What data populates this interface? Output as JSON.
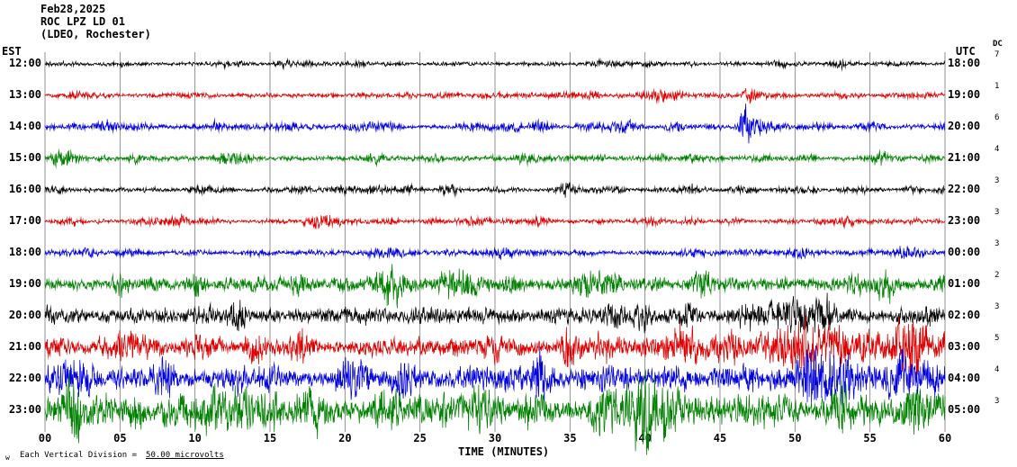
{
  "header": {
    "date": "Feb28,2025",
    "station_line": "ROC LPZ LD 01",
    "location_line": "(LDEO, Rochester)"
  },
  "axis_labels": {
    "left_tz": "EST",
    "right_tz": "UTC",
    "dc": "DC",
    "x_title": "TIME (MINUTES)"
  },
  "x_ticks": [
    "00",
    "05",
    "10",
    "15",
    "20",
    "25",
    "30",
    "35",
    "40",
    "45",
    "50",
    "55",
    "60"
  ],
  "footer": {
    "note": "Each Vertical Division =",
    "value": "50.00 microvolts",
    "corner_glyph": "w"
  },
  "chart_data": {
    "type": "line",
    "title": "ROC LPZ LD 01 (LDEO, Rochester) helicorder, Feb28,2025",
    "x_label": "TIME (MINUTES)",
    "x_range": [
      0,
      60
    ],
    "grid": {
      "x_interval_minutes": 5,
      "vertical_gridlines": true
    },
    "minutes_per_row": 60,
    "vertical_division_microvolts": 50.0,
    "amp_units": "approx half-amplitude in px, read from pixel trace heights",
    "rows": [
      {
        "est": "12:00",
        "utc": "18:00",
        "dc": "7",
        "color": "#000000",
        "amp": 3.5,
        "burst": 0.7,
        "trend": 0,
        "seed": 11,
        "events": [
          {
            "min": 17.5,
            "gain": 0.9,
            "width": 0.5
          },
          {
            "min": 37,
            "gain": 0.8,
            "width": 0.6
          }
        ]
      },
      {
        "est": "13:00",
        "utc": "19:00",
        "dc": "1",
        "color": "#dd0000",
        "amp": 4.5,
        "burst": 0.9,
        "trend": 0,
        "seed": 22,
        "events": [
          {
            "min": 36.5,
            "gain": 1.0,
            "width": 0.5
          },
          {
            "min": 41,
            "gain": 1.2,
            "width": 0.8
          },
          {
            "min": 47,
            "gain": 1.6,
            "width": 0.6
          }
        ]
      },
      {
        "est": "14:00",
        "utc": "20:00",
        "dc": "6",
        "color": "#0000dd",
        "amp": 4.5,
        "burst": 0.9,
        "trend": 0,
        "seed": 33,
        "events": [
          {
            "min": 11.5,
            "gain": 1.1,
            "width": 0.5
          },
          {
            "min": 42,
            "gain": 0.9,
            "width": 0.5
          },
          {
            "min": 46.6,
            "gain": 6.0,
            "width": 0.28
          },
          {
            "min": 47.4,
            "gain": 1.8,
            "width": 1.0
          }
        ]
      },
      {
        "est": "15:00",
        "utc": "21:00",
        "dc": "4",
        "color": "#008000",
        "amp": 4.5,
        "burst": 0.9,
        "trend": 0,
        "seed": 44,
        "events": [
          {
            "min": 1.2,
            "gain": 2.0,
            "width": 0.9
          },
          {
            "min": 55.5,
            "gain": 1.1,
            "width": 0.7
          }
        ]
      },
      {
        "est": "16:00",
        "utc": "22:00",
        "dc": "3",
        "color": "#000000",
        "amp": 4.5,
        "burst": 0.9,
        "trend": 0,
        "seed": 55,
        "events": [
          {
            "min": 22,
            "gain": 0.9,
            "width": 0.6
          },
          {
            "min": 34.8,
            "gain": 1.5,
            "width": 0.5
          }
        ]
      },
      {
        "est": "17:00",
        "utc": "23:00",
        "dc": "3",
        "color": "#dd0000",
        "amp": 4.5,
        "burst": 0.9,
        "trend": 0,
        "seed": 66,
        "events": [
          {
            "min": 9,
            "gain": 0.8,
            "width": 0.5
          },
          {
            "min": 53.5,
            "gain": 1.1,
            "width": 0.7
          }
        ]
      },
      {
        "est": "18:00",
        "utc": "00:00",
        "dc": "3",
        "color": "#0000dd",
        "amp": 5,
        "burst": 1.0,
        "trend": 0,
        "seed": 77,
        "events": [
          {
            "min": 30.5,
            "gain": 1.1,
            "width": 0.8
          },
          {
            "min": 50,
            "gain": 1.2,
            "width": 0.7
          }
        ]
      },
      {
        "est": "19:00",
        "utc": "01:00",
        "dc": "2",
        "color": "#008000",
        "amp": 10,
        "burst": 1.1,
        "trend": 0.2,
        "seed": 88,
        "events": [
          {
            "min": 23,
            "gain": 1.2,
            "width": 1.2
          },
          {
            "min": 37,
            "gain": 1.0,
            "width": 1.0
          }
        ]
      },
      {
        "est": "20:00",
        "utc": "02:00",
        "dc": "3",
        "color": "#000000",
        "amp": 11,
        "burst": 1.1,
        "trend": 0.25,
        "seed": 99,
        "events": [
          {
            "min": 50,
            "gain": 1.0,
            "width": 1.5
          }
        ]
      },
      {
        "est": "21:00",
        "utc": "03:00",
        "dc": "5",
        "color": "#dd0000",
        "amp": 13,
        "burst": 1.1,
        "trend": 0.3,
        "seed": 110,
        "events": [
          {
            "min": 50,
            "gain": 1.2,
            "width": 2.0
          },
          {
            "min": 58,
            "gain": 1.3,
            "width": 1.2
          }
        ]
      },
      {
        "est": "22:00",
        "utc": "04:00",
        "dc": "4",
        "color": "#0000dd",
        "amp": 16,
        "burst": 1.2,
        "trend": 0.3,
        "seed": 121,
        "events": [
          {
            "min": 2,
            "gain": 1.2,
            "width": 1.5
          },
          {
            "min": 52,
            "gain": 1.2,
            "width": 2.0
          }
        ]
      },
      {
        "est": "23:00",
        "utc": "05:00",
        "dc": "3",
        "color": "#008000",
        "amp": 21,
        "burst": 1.2,
        "trend": 0.2,
        "seed": 132,
        "events": [
          {
            "min": 12,
            "gain": 1.0,
            "width": 2.0
          },
          {
            "min": 40,
            "gain": 1.0,
            "width": 2.0
          }
        ]
      }
    ]
  }
}
